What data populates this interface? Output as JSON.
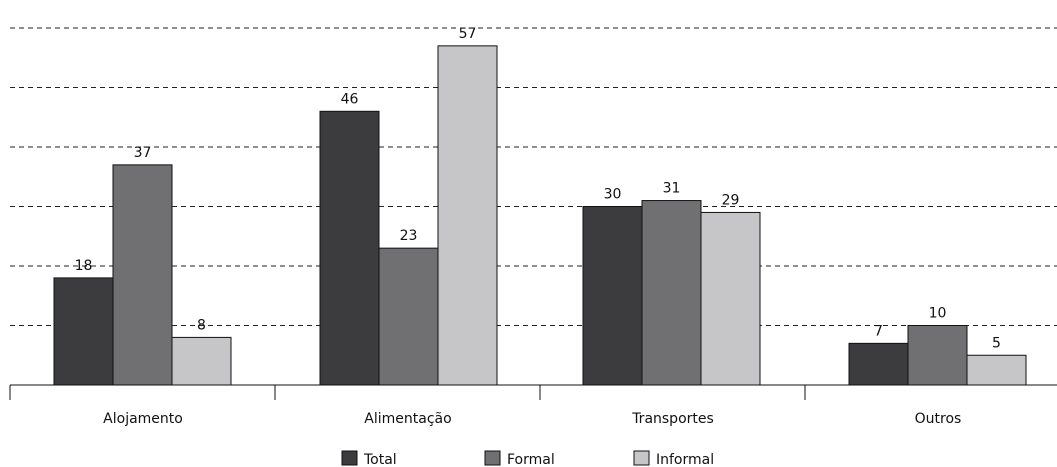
{
  "chart_data": {
    "type": "bar",
    "title": "",
    "xlabel": "",
    "ylabel": "",
    "categories": [
      "Alojamento",
      "Alimentação",
      "Transportes",
      "Outros"
    ],
    "series": [
      {
        "name": "Total",
        "values": [
          18,
          46,
          30,
          7
        ],
        "color": "#3c3c3e"
      },
      {
        "name": "Formal",
        "values": [
          37,
          23,
          31,
          10
        ],
        "color": "#707072"
      },
      {
        "name": "Informal",
        "values": [
          8,
          57,
          29,
          5
        ],
        "color": "#c6c6c8"
      }
    ],
    "ylim": [
      0,
      60
    ],
    "grid": true,
    "grid_style": "dashed",
    "legend_position": "bottom-center"
  }
}
